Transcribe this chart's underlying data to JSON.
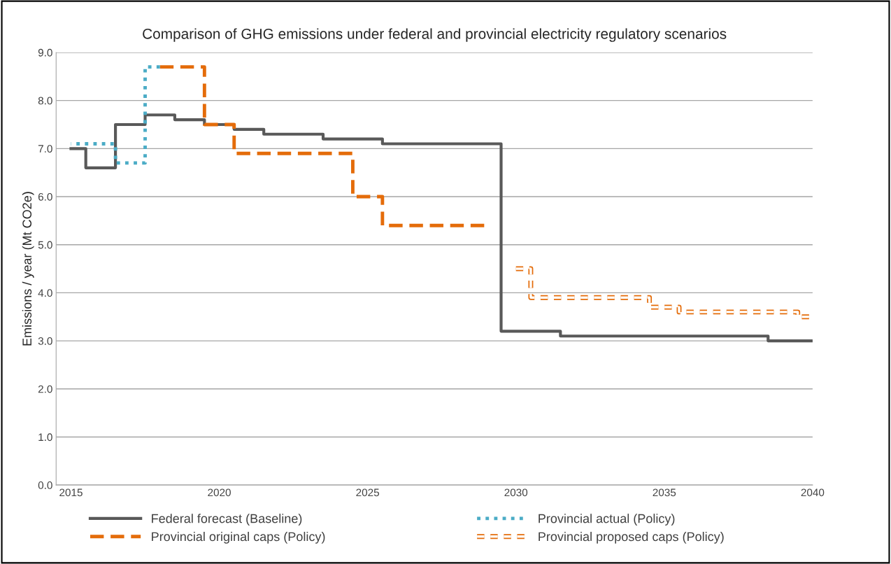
{
  "chart_data": {
    "type": "step",
    "title": "Comparison of GHG emissions under federal and provincial electricity regulatory scenarios",
    "ylabel": "Emissions / year (Mt CO2e)",
    "xlim": [
      2014.5,
      2040.0
    ],
    "xticks": [
      2015,
      2020,
      2025,
      2030,
      2035,
      2040
    ],
    "ylim": [
      0,
      9
    ],
    "yticks": [
      {
        "value": 0,
        "label": "0.0"
      },
      {
        "value": 1,
        "label": "1.0"
      },
      {
        "value": 2,
        "label": "2.0"
      },
      {
        "value": 3,
        "label": "3.0"
      },
      {
        "value": 4,
        "label": "4.0"
      },
      {
        "value": 5,
        "label": "5.0"
      },
      {
        "value": 6,
        "label": "6.0"
      },
      {
        "value": 7,
        "label": "7.0"
      },
      {
        "value": 8,
        "label": "8.0"
      },
      {
        "value": 9,
        "label": "9.0"
      }
    ],
    "grid": "y",
    "legend": "bottom",
    "series": [
      {
        "name": "Federal forecast (Baseline)",
        "color": "#595959",
        "line_style": "solid",
        "x": [
          2015,
          2016,
          2017,
          2018,
          2019,
          2020,
          2021,
          2022,
          2023,
          2024,
          2025,
          2026,
          2027,
          2028,
          2029,
          2030,
          2031,
          2032,
          2033,
          2034,
          2035,
          2036,
          2037,
          2038,
          2039,
          2040
        ],
        "values": [
          7.0,
          6.6,
          7.5,
          7.7,
          7.6,
          7.5,
          7.4,
          7.3,
          7.3,
          7.2,
          7.2,
          7.1,
          7.1,
          7.1,
          7.1,
          3.2,
          3.2,
          3.1,
          3.1,
          3.1,
          3.1,
          3.1,
          3.1,
          3.1,
          3.0,
          3.0
        ]
      },
      {
        "name": "Provincial actual (Policy)",
        "color": "#4bacc6",
        "line_style": "dotted",
        "x": [
          2015,
          2016,
          2017,
          2018
        ],
        "values": [
          7.1,
          7.1,
          6.7,
          8.7
        ]
      },
      {
        "name": "Provincial original caps (Policy)",
        "color": "#e46c0a",
        "line_style": "dashed",
        "x": [
          2018,
          2019,
          2020,
          2021,
          2022,
          2023,
          2024,
          2025,
          2026,
          2027,
          2028,
          2029
        ],
        "values": [
          8.7,
          8.7,
          7.5,
          6.9,
          6.9,
          6.9,
          6.9,
          6.0,
          5.4,
          5.4,
          5.4,
          5.4
        ]
      },
      {
        "name": "Provincial proposed caps (Policy)",
        "color": "#e46c0a",
        "line_style": "hollow dashed",
        "x": [
          2030,
          2031,
          2032,
          2033,
          2034,
          2035,
          2036,
          2037,
          2038,
          2039,
          2040
        ],
        "values": [
          4.5,
          3.9,
          3.9,
          3.9,
          3.9,
          3.7,
          3.6,
          3.6,
          3.6,
          3.6,
          3.5
        ]
      }
    ]
  }
}
